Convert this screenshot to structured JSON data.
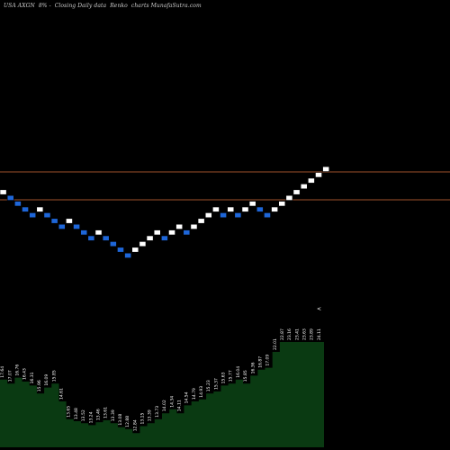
{
  "header": {
    "symbol": "USA AXGN",
    "change": "8% -",
    "desc": "Closing Daily data",
    "chart_kind": "Renko",
    "source": "charts MunafaSutra.com"
  },
  "colors": {
    "background": "#000000",
    "up_brick": "#ffffff",
    "down_brick": "#1e66d8",
    "brick_border": "#000000",
    "hline": "#a0522d",
    "volume_fill": "#0a3a12",
    "volume_stroke": "#ffffff",
    "label": "#ffffff"
  },
  "chart_data": {
    "type": "renko",
    "title": "",
    "level_lines": [
      16.2,
      16.2
    ],
    "bricks": [
      {
        "d": "up"
      },
      {
        "d": "down"
      },
      {
        "d": "down"
      },
      {
        "d": "down"
      },
      {
        "d": "down"
      },
      {
        "d": "up"
      },
      {
        "d": "down"
      },
      {
        "d": "down"
      },
      {
        "d": "down"
      },
      {
        "d": "up"
      },
      {
        "d": "down"
      },
      {
        "d": "down"
      },
      {
        "d": "down"
      },
      {
        "d": "up"
      },
      {
        "d": "down"
      },
      {
        "d": "down"
      },
      {
        "d": "down"
      },
      {
        "d": "down"
      },
      {
        "d": "up"
      },
      {
        "d": "up"
      },
      {
        "d": "up"
      },
      {
        "d": "up"
      },
      {
        "d": "down"
      },
      {
        "d": "up"
      },
      {
        "d": "up"
      },
      {
        "d": "down"
      },
      {
        "d": "up"
      },
      {
        "d": "up"
      },
      {
        "d": "up"
      },
      {
        "d": "up"
      },
      {
        "d": "down"
      },
      {
        "d": "up"
      },
      {
        "d": "down"
      },
      {
        "d": "up"
      },
      {
        "d": "up"
      },
      {
        "d": "down"
      },
      {
        "d": "down"
      },
      {
        "d": "up"
      },
      {
        "d": "up"
      },
      {
        "d": "up"
      },
      {
        "d": "up"
      },
      {
        "d": "up"
      },
      {
        "d": "up"
      },
      {
        "d": "up"
      },
      {
        "d": "up"
      }
    ],
    "volume": {
      "values": [
        62,
        58,
        64,
        60,
        56,
        48,
        54,
        58,
        40,
        22,
        20,
        18,
        16,
        19,
        21,
        18,
        14,
        12,
        8,
        15,
        18,
        22,
        28,
        32,
        28,
        36,
        40,
        42,
        48,
        50,
        56,
        58,
        62,
        58,
        66,
        72,
        74,
        90,
        100,
        100,
        100,
        100,
        100,
        100
      ],
      "labels": [
        "17.64",
        "17.07",
        "16.76",
        "16.43",
        "16.31",
        "15.96",
        "16.09",
        "15.85",
        "14.61",
        "13.65",
        "13.48",
        "13.52",
        "13.24",
        "13.46",
        "13.61",
        "13.39",
        "13.08",
        "12.88",
        "12.84",
        "13.15",
        "13.39",
        "13.73",
        "14.02",
        "14.34",
        "14.11",
        "14.54",
        "14.79",
        "14.93",
        "15.23",
        "15.37",
        "15.63",
        "15.77",
        "16.04",
        "15.85",
        "16.36",
        "16.87",
        "17.09",
        "22.01",
        "22.87",
        "23.16",
        "23.41",
        "23.63",
        "23.89",
        "24.11"
      ]
    },
    "end_marker": "<"
  }
}
